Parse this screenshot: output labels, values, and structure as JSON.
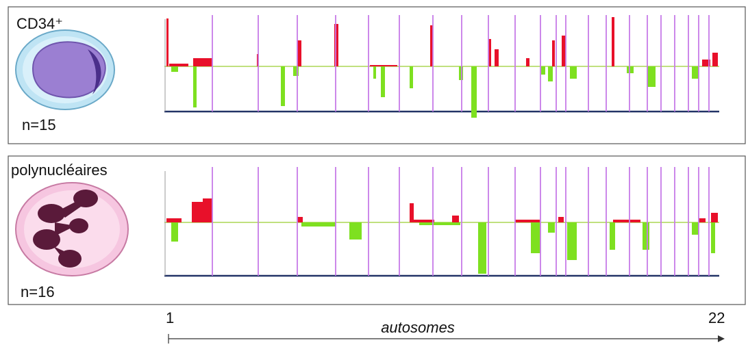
{
  "panels": [
    {
      "label": "CD34⁺",
      "n": "n=15"
    },
    {
      "label": "polynucléaires",
      "n": "n=16"
    }
  ],
  "axis": {
    "start": "1",
    "end": "22",
    "label": "autosomes"
  }
}
